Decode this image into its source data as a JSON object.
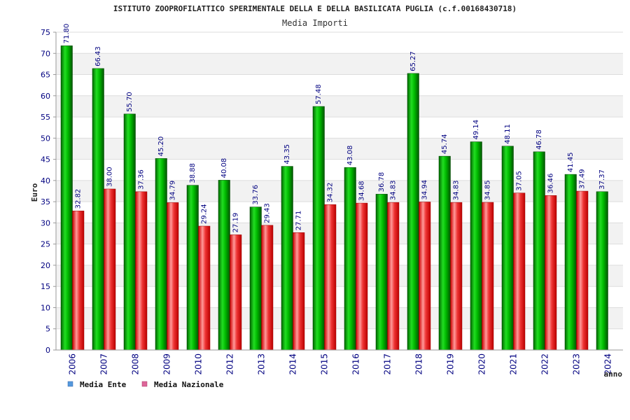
{
  "chart_data": {
    "type": "bar",
    "title": "ISTITUTO ZOOPROFILATTICO SPERIMENTALE DELLA E DELLA BASILICATA PUGLIA (c.f.00168430718)",
    "subtitle": "Media Importi",
    "ylabel": "Euro",
    "xlabel": "anno",
    "ylim": [
      0,
      75
    ],
    "yticks": [
      "0",
      "5",
      "10",
      "15",
      "20",
      "25",
      "30",
      "35",
      "40",
      "45",
      "50",
      "55",
      "60",
      "65",
      "70",
      "75"
    ],
    "categories": [
      "2006",
      "2007",
      "2008",
      "2009",
      "2010",
      "2012",
      "2013",
      "2014",
      "2015",
      "2016",
      "2017",
      "2018",
      "2019",
      "2020",
      "2021",
      "2022",
      "2023",
      "2024"
    ],
    "series": [
      {
        "name": "Media Ente",
        "color": "#00aa00",
        "values": [
          71.8,
          66.43,
          55.7,
          45.2,
          38.88,
          40.08,
          33.76,
          43.35,
          57.48,
          43.08,
          36.78,
          65.27,
          45.74,
          49.14,
          48.11,
          46.78,
          41.45,
          37.37
        ],
        "labels": [
          "71.80",
          "66.43",
          "55.70",
          "45.20",
          "38.88",
          "40.08",
          "33.76",
          "43.35",
          "57.48",
          "43.08",
          "36.78",
          "65.27",
          "45.74",
          "49.14",
          "48.11",
          "46.78",
          "41.45",
          "37.37"
        ]
      },
      {
        "name": "Media Nazionale",
        "color": "#dd1111",
        "values": [
          32.82,
          38.0,
          37.36,
          34.79,
          29.24,
          27.19,
          29.43,
          27.71,
          34.32,
          34.68,
          34.83,
          34.94,
          34.83,
          34.85,
          37.05,
          36.46,
          37.49,
          null
        ],
        "labels": [
          "32.82",
          "38.00",
          "37.36",
          "34.79",
          "29.24",
          "27.19",
          "29.43",
          "27.71",
          "34.32",
          "34.68",
          "34.83",
          "34.94",
          "34.83",
          "34.85",
          "37.05",
          "36.46",
          "37.49",
          null
        ]
      }
    ],
    "legend": [
      {
        "name": "Media Ente",
        "color": "#5599dd"
      },
      {
        "name": "Media Nazionale",
        "color": "#dd6699"
      }
    ],
    "legend_position": "bottom-left",
    "grid": true
  }
}
